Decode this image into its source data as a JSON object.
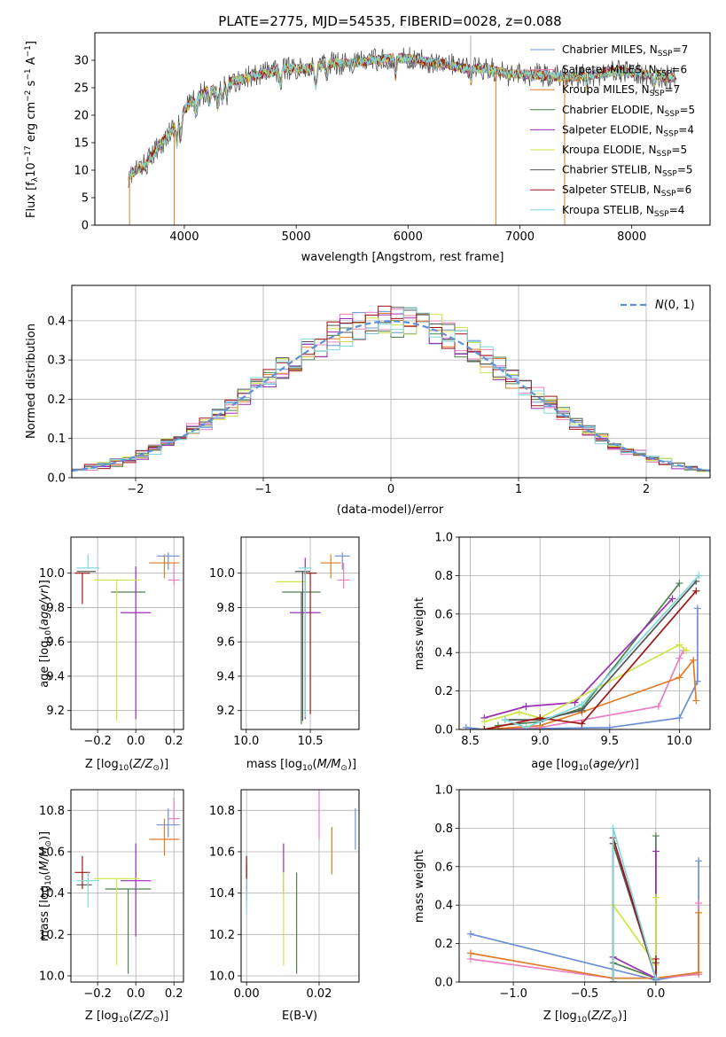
{
  "title": "PLATE=2775, MJD=54535, FIBERID=0028, z=0.088",
  "colors": {
    "chabrier_miles": "#6b8fd6",
    "salpeter_miles": "#e97fc0",
    "kroupa_miles": "#e07b27",
    "chabrier_elodie": "#4f7f4f",
    "salpeter_elodie": "#9a2fb5",
    "kroupa_elodie": "#cde646",
    "chabrier_stelib": "#555555",
    "salpeter_stelib": "#a01515",
    "kroupa_stelib": "#7fd8dd"
  },
  "chart_data": [
    {
      "type": "line",
      "panel": "spectrum",
      "title": "PLATE=2775, MJD=54535, FIBERID=0028, z=0.088",
      "xlabel": "wavelength [Angstrom, rest frame]",
      "ylabel": "Flux [f_λ 10^-17 erg cm^-2 s^-1 A^-1]",
      "xlim": [
        3200,
        8700
      ],
      "ylim": [
        0,
        35
      ],
      "xticks": [
        4000,
        5000,
        6000,
        7000,
        8000
      ],
      "yticks": [
        0,
        5,
        10,
        15,
        20,
        25,
        30
      ],
      "legend_position": "top-right",
      "legend": [
        {
          "label": "Chabrier MILES, N_SSP=7",
          "base": "Chabrier MILES, N",
          "sub": "SSP",
          "tail": "=7"
        },
        {
          "label": "Salpeter MILES, N_SSP=6",
          "base": "Salpeter MILES, N",
          "sub": "SSP",
          "tail": "=6"
        },
        {
          "label": "Kroupa MILES, N_SSP=7",
          "base": "Kroupa MILES, N",
          "sub": "SSP",
          "tail": "=7"
        },
        {
          "label": "Chabrier ELODIE, N_SSP=5",
          "base": "Chabrier ELODIE, N",
          "sub": "SSP",
          "tail": "=5"
        },
        {
          "label": "Salpeter ELODIE, N_SSP=4",
          "base": "Salpeter ELODIE, N",
          "sub": "SSP",
          "tail": "=4"
        },
        {
          "label": "Kroupa ELODIE, N_SSP=5",
          "base": "Kroupa ELODIE, N",
          "sub": "SSP",
          "tail": "=5"
        },
        {
          "label": "Chabrier STELIB, N_SSP=5",
          "base": "Chabrier STELIB, N",
          "sub": "SSP",
          "tail": "=5"
        },
        {
          "label": "Salpeter STELIB, N_SSP=6",
          "base": "Salpeter STELIB, N",
          "sub": "SSP",
          "tail": "=6"
        },
        {
          "label": "Kroupa STELIB, N_SSP=4",
          "base": "Kroupa STELIB, N",
          "sub": "SSP",
          "tail": "=4"
        }
      ],
      "continuum": {
        "x": [
          3500,
          3650,
          3800,
          3900,
          4000,
          4100,
          4200,
          4300,
          4400,
          4500,
          4700,
          4900,
          5100,
          5300,
          5500,
          5700,
          5900,
          6100,
          6300,
          6500,
          6700,
          6900,
          7100,
          7300,
          7500,
          7700,
          7900,
          8100,
          8300,
          8500
        ],
        "y": [
          9,
          11,
          15,
          17.5,
          21,
          23,
          24.5,
          24.5,
          26,
          26.5,
          27.5,
          28.5,
          28.5,
          29.5,
          29.5,
          30,
          30.5,
          30,
          29.5,
          28.5,
          28.5,
          27.5,
          27.5,
          27,
          27,
          27.5,
          28,
          27.5,
          27,
          26.5
        ]
      },
      "spike_down_x": [
        3510,
        3910,
        6785,
        7400
      ],
      "spike_up_x": [
        6560
      ]
    },
    {
      "type": "histogram",
      "panel": "residuals",
      "xlabel": "(data-model)/error",
      "ylabel": "Normed distribution",
      "xlim": [
        -2.5,
        2.5
      ],
      "ylim": [
        0,
        0.49
      ],
      "xticks": [
        -2,
        -1,
        0,
        1,
        2
      ],
      "yticks": [
        0.0,
        0.1,
        0.2,
        0.3,
        0.4
      ],
      "bin_width": 0.1,
      "normal_curve_label": "N(0,1)",
      "legend_position": "top-right"
    },
    {
      "type": "scatter",
      "panel": "age-vs-Z",
      "xlabel": "Z [log10(Z/Z⊙)]",
      "ylabel": "age [log10(age/yr)]",
      "xlim": [
        -0.34,
        0.25
      ],
      "ylim": [
        9.09,
        10.21
      ],
      "xticks": [
        -0.2,
        0.0,
        0.2
      ],
      "yticks": [
        9.2,
        9.4,
        9.6,
        9.8,
        10.0
      ],
      "points": [
        {
          "series": "chabrier_miles",
          "x": 0.17,
          "y": 10.1,
          "xerr": 0.06,
          "yerr_lo": 0.08,
          "yerr_hi": 0.02
        },
        {
          "series": "salpeter_miles",
          "x": 0.2,
          "y": 9.96,
          "xerr": 0.03,
          "yerr_lo": 0.03,
          "yerr_hi": 0.1
        },
        {
          "series": "kroupa_miles",
          "x": 0.15,
          "y": 10.06,
          "xerr": 0.08,
          "yerr_lo": 0.09,
          "yerr_hi": 0.05
        },
        {
          "series": "chabrier_elodie",
          "x": -0.04,
          "y": 9.89,
          "xerr": 0.09,
          "yerr_lo": 0.0,
          "yerr_hi": 0.0
        },
        {
          "series": "salpeter_elodie",
          "x": 0.0,
          "y": 9.77,
          "xerr": 0.08,
          "yerr_lo": 0.62,
          "yerr_hi": 0.27
        },
        {
          "series": "kroupa_elodie",
          "x": -0.1,
          "y": 9.96,
          "xerr": 0.12,
          "yerr_lo": 0.82,
          "yerr_hi": 0.0
        },
        {
          "series": "chabrier_stelib",
          "x": -0.26,
          "y": 10.01,
          "xerr": 0.05,
          "yerr_lo": 0.0,
          "yerr_hi": 0.0
        },
        {
          "series": "salpeter_stelib",
          "x": -0.28,
          "y": 10.0,
          "xerr": 0.04,
          "yerr_lo": 0.18,
          "yerr_hi": 0.0
        },
        {
          "series": "kroupa_stelib",
          "x": -0.25,
          "y": 10.03,
          "xerr": 0.06,
          "yerr_lo": 0.0,
          "yerr_hi": 0.08
        }
      ]
    },
    {
      "type": "scatter",
      "panel": "age-vs-mass",
      "xlabel": "mass [log10(M/M⊙)]",
      "ylabel": "",
      "xlim": [
        9.96,
        10.88
      ],
      "ylim": [
        9.09,
        10.21
      ],
      "xticks": [
        10.0,
        10.5
      ],
      "yticks": [
        9.2,
        9.4,
        9.6,
        9.8,
        10.0
      ],
      "points": [
        {
          "series": "chabrier_miles",
          "x": 10.75,
          "y": 10.1,
          "xerr": 0.06,
          "yerr_lo": 0.08,
          "yerr_hi": 0.02
        },
        {
          "series": "salpeter_miles",
          "x": 10.76,
          "y": 9.96,
          "xerr": 0.05,
          "yerr_lo": 0.05,
          "yerr_hi": 0.1
        },
        {
          "series": "kroupa_miles",
          "x": 10.66,
          "y": 10.06,
          "xerr": 0.08,
          "yerr_lo": 0.09,
          "yerr_hi": 0.05
        },
        {
          "series": "chabrier_elodie",
          "x": 10.43,
          "y": 9.89,
          "xerr": 0.15,
          "yerr_lo": 0.77,
          "yerr_hi": 0.0
        },
        {
          "series": "salpeter_elodie",
          "x": 10.46,
          "y": 9.77,
          "xerr": 0.12,
          "yerr_lo": 0.62,
          "yerr_hi": 0.32
        },
        {
          "series": "kroupa_elodie",
          "x": 10.35,
          "y": 9.95,
          "xerr": 0.12,
          "yerr_lo": 0.0,
          "yerr_hi": 0.0
        },
        {
          "series": "chabrier_stelib",
          "x": 10.44,
          "y": 10.01,
          "xerr": 0.06,
          "yerr_lo": 0.87,
          "yerr_hi": 0.0
        },
        {
          "series": "salpeter_stelib",
          "x": 10.5,
          "y": 10.0,
          "xerr": 0.05,
          "yerr_lo": 0.82,
          "yerr_hi": 0.0
        },
        {
          "series": "kroupa_stelib",
          "x": 10.46,
          "y": 10.03,
          "xerr": 0.05,
          "yerr_lo": 0.87,
          "yerr_hi": 0.0
        }
      ]
    },
    {
      "type": "line",
      "panel": "mass-weight-vs-age",
      "xlabel": "age [log10(age/yr)]",
      "ylabel": "mass weight",
      "xlim": [
        8.42,
        10.22
      ],
      "ylim": [
        0,
        1
      ],
      "xticks": [
        8.5,
        9.0,
        9.5,
        10.0
      ],
      "yticks": [
        0.0,
        0.2,
        0.4,
        0.6,
        0.8,
        1.0
      ],
      "series": [
        {
          "name": "chabrier_miles",
          "x": [
            8.47,
            8.6,
            9.5,
            10.0,
            10.13,
            10.13
          ],
          "y": [
            0.01,
            0.0,
            0.01,
            0.06,
            0.25,
            0.63
          ]
        },
        {
          "name": "salpeter_miles",
          "x": [
            8.6,
            9.0,
            9.85,
            10.0,
            10.03
          ],
          "y": [
            0.0,
            0.01,
            0.12,
            0.37,
            0.41
          ]
        },
        {
          "name": "kroupa_miles",
          "x": [
            8.6,
            9.0,
            9.3,
            10.0,
            10.1,
            10.12
          ],
          "y": [
            0.0,
            0.02,
            0.09,
            0.27,
            0.36,
            0.15
          ]
        },
        {
          "name": "chabrier_elodie",
          "x": [
            8.7,
            9.0,
            9.3,
            10.0
          ],
          "y": [
            0.02,
            0.04,
            0.11,
            0.76
          ]
        },
        {
          "name": "salpeter_elodie",
          "x": [
            8.6,
            8.9,
            9.25,
            9.95
          ],
          "y": [
            0.06,
            0.12,
            0.14,
            0.68
          ]
        },
        {
          "name": "kroupa_elodie",
          "x": [
            8.6,
            8.85,
            9.0,
            10.0,
            10.05
          ],
          "y": [
            0.04,
            0.09,
            0.06,
            0.44,
            0.41
          ]
        },
        {
          "name": "chabrier_stelib",
          "x": [
            8.75,
            9.0,
            9.3,
            10.12
          ],
          "y": [
            0.05,
            0.05,
            0.1,
            0.77
          ]
        },
        {
          "name": "salpeter_stelib",
          "x": [
            8.6,
            9.0,
            9.3,
            10.12
          ],
          "y": [
            0.0,
            0.06,
            0.03,
            0.72
          ]
        },
        {
          "name": "kroupa_stelib",
          "x": [
            8.75,
            8.9,
            9.3,
            10.14
          ],
          "y": [
            0.05,
            0.01,
            0.13,
            0.8
          ]
        }
      ]
    },
    {
      "type": "scatter",
      "panel": "mass-vs-Z",
      "xlabel": "Z [log10(Z/Z⊙)]",
      "ylabel": "mass [log10(M/M⊙)]",
      "xlim": [
        -0.34,
        0.25
      ],
      "ylim": [
        9.97,
        10.9
      ],
      "xticks": [
        -0.2,
        0.0,
        0.2
      ],
      "yticks": [
        10.0,
        10.2,
        10.4,
        10.6,
        10.8
      ],
      "points": [
        {
          "series": "chabrier_miles",
          "x": 0.17,
          "y": 10.73,
          "xerr": 0.06,
          "yerr_lo": 0.06,
          "yerr_hi": 0.08
        },
        {
          "series": "salpeter_miles",
          "x": 0.2,
          "y": 10.76,
          "xerr": 0.03,
          "yerr_lo": 0.03,
          "yerr_hi": 0.1
        },
        {
          "series": "kroupa_miles",
          "x": 0.15,
          "y": 10.66,
          "xerr": 0.08,
          "yerr_lo": 0.08,
          "yerr_hi": 0.1
        },
        {
          "series": "chabrier_elodie",
          "x": -0.04,
          "y": 10.42,
          "xerr": 0.12,
          "yerr_lo": 0.41,
          "yerr_hi": 0.0
        },
        {
          "series": "salpeter_elodie",
          "x": 0.0,
          "y": 10.46,
          "xerr": 0.08,
          "yerr_lo": 0.27,
          "yerr_hi": 0.18
        },
        {
          "series": "kroupa_elodie",
          "x": -0.1,
          "y": 10.47,
          "xerr": 0.12,
          "yerr_lo": 0.42,
          "yerr_hi": 0.0
        },
        {
          "series": "chabrier_stelib",
          "x": -0.27,
          "y": 10.44,
          "xerr": 0.04,
          "yerr_lo": 0.0,
          "yerr_hi": 0.0
        },
        {
          "series": "salpeter_stelib",
          "x": -0.28,
          "y": 10.5,
          "xerr": 0.04,
          "yerr_lo": 0.08,
          "yerr_hi": 0.08
        },
        {
          "series": "kroupa_stelib",
          "x": -0.25,
          "y": 10.46,
          "xerr": 0.06,
          "yerr_lo": 0.13,
          "yerr_hi": 0.04
        }
      ]
    },
    {
      "type": "scatter",
      "panel": "mass-vs-EBV",
      "xlabel": "E(B-V)",
      "ylabel": "",
      "xlim": [
        -0.0015,
        0.031
      ],
      "ylim": [
        9.97,
        10.9
      ],
      "xticks": [
        0.0,
        0.02
      ],
      "yticks": [
        10.0,
        10.2,
        10.4,
        10.6,
        10.8
      ],
      "points": [
        {
          "series": "chabrier_miles",
          "x": 0.03,
          "y": 10.73,
          "xerr": 0.0,
          "yerr_lo": 0.12,
          "yerr_hi": 0.08
        },
        {
          "series": "salpeter_miles",
          "x": 0.02,
          "y": 10.8,
          "xerr": 0.0,
          "yerr_lo": 0.14,
          "yerr_hi": 0.1
        },
        {
          "series": "kroupa_miles",
          "x": 0.0235,
          "y": 10.66,
          "xerr": 0.0,
          "yerr_lo": 0.17,
          "yerr_hi": 0.06
        },
        {
          "series": "chabrier_elodie",
          "x": 0.0138,
          "y": 10.42,
          "xerr": 0.0,
          "yerr_lo": 0.41,
          "yerr_hi": 0.08
        },
        {
          "series": "salpeter_elodie",
          "x": 0.0102,
          "y": 10.5,
          "xerr": 0.0,
          "yerr_lo": 0.1,
          "yerr_hi": 0.14
        },
        {
          "series": "kroupa_elodie",
          "x": 0.0102,
          "y": 10.47,
          "xerr": 0.0,
          "yerr_lo": 0.42,
          "yerr_hi": 0.03
        },
        {
          "series": "chabrier_stelib",
          "x": 0.0,
          "y": 10.44,
          "xerr": 0.0,
          "yerr_lo": 0.08,
          "yerr_hi": 0.1
        },
        {
          "series": "salpeter_stelib",
          "x": 0.0,
          "y": 10.5,
          "xerr": 0.0,
          "yerr_lo": 0.08,
          "yerr_hi": 0.08
        },
        {
          "series": "kroupa_stelib",
          "x": 0.0,
          "y": 10.42,
          "xerr": 0.0,
          "yerr_lo": 0.12,
          "yerr_hi": 0.05
        }
      ]
    },
    {
      "type": "line",
      "panel": "mass-weight-vs-Z",
      "xlabel": "Z [log10(Z/Z⊙)]",
      "ylabel": "mass weight",
      "xlim": [
        -1.38,
        0.38
      ],
      "ylim": [
        0,
        1
      ],
      "xticks": [
        -1.0,
        -0.5,
        0.0
      ],
      "yticks": [
        0.0,
        0.2,
        0.4,
        0.6,
        0.8,
        1.0
      ],
      "series": [
        {
          "name": "chabrier_miles",
          "x": [
            -1.3,
            0.0,
            0.3,
            0.3
          ],
          "y": [
            0.25,
            0.01,
            0.05,
            0.63
          ]
        },
        {
          "name": "salpeter_miles",
          "x": [
            -1.3,
            -0.3,
            0.0,
            0.3,
            0.3
          ],
          "y": [
            0.12,
            0.02,
            0.02,
            0.04,
            0.41
          ]
        },
        {
          "name": "kroupa_miles",
          "x": [
            -1.3,
            -0.3,
            0.0,
            0.3,
            0.3
          ],
          "y": [
            0.15,
            0.02,
            0.02,
            0.05,
            0.36
          ]
        },
        {
          "name": "chabrier_elodie",
          "x": [
            -0.3,
            -0.3,
            0.0,
            0.0
          ],
          "y": [
            0.0,
            0.1,
            0.02,
            0.76
          ]
        },
        {
          "name": "salpeter_elodie",
          "x": [
            -0.3,
            -0.3,
            0.0,
            0.0
          ],
          "y": [
            0.0,
            0.13,
            0.02,
            0.68
          ]
        },
        {
          "name": "kroupa_elodie",
          "x": [
            -0.3,
            -0.3,
            0.0,
            0.0
          ],
          "y": [
            0.0,
            0.4,
            0.09,
            0.44
          ]
        },
        {
          "name": "chabrier_stelib",
          "x": [
            -0.3,
            -0.3,
            0.0,
            0.0
          ],
          "y": [
            0.0,
            0.72,
            0.02,
            0.1
          ]
        },
        {
          "name": "salpeter_stelib",
          "x": [
            -0.3,
            -0.3,
            0.0,
            0.0
          ],
          "y": [
            0.0,
            0.75,
            0.02,
            0.12
          ]
        },
        {
          "name": "kroupa_stelib",
          "x": [
            -0.3,
            -0.3,
            0.0
          ],
          "y": [
            0.0,
            0.8,
            0.02
          ]
        }
      ]
    }
  ]
}
